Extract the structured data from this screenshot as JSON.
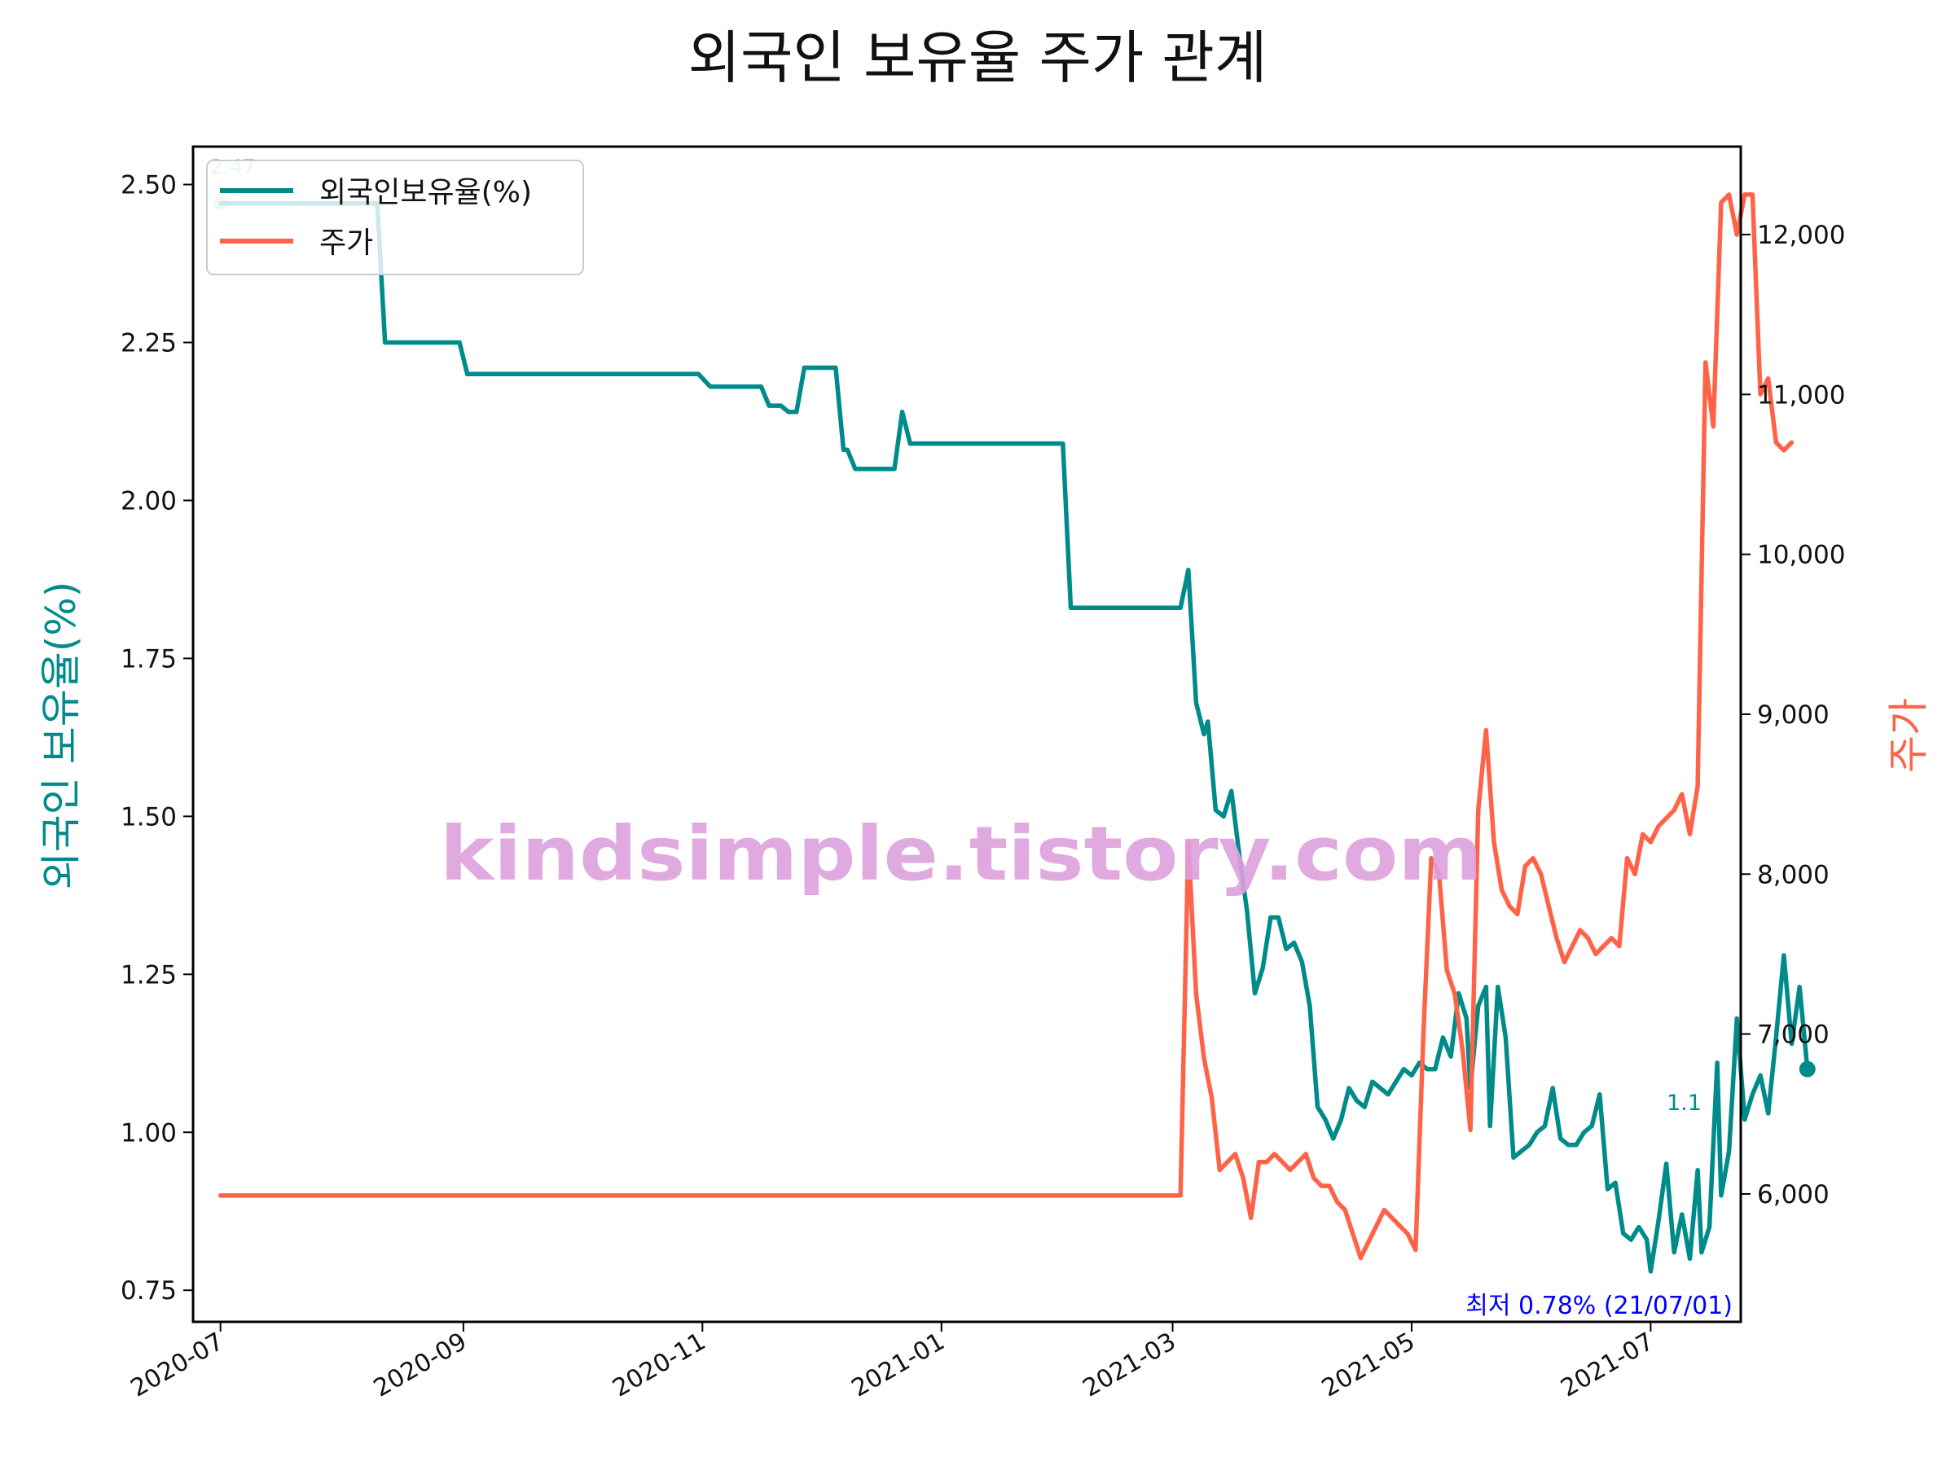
{
  "chart_data": {
    "type": "line",
    "title": "외국인 보유율 주가 관계",
    "ylabel_left": "외국인 보유율(%)",
    "ylabel_right": "주가",
    "x_range": [
      "2020-06-24",
      "2021-07-24"
    ],
    "ylim_left": [
      0.7,
      2.56
    ],
    "ylim_right": [
      5200,
      12550
    ],
    "x_ticks": [
      "2020-07",
      "2020-09",
      "2020-11",
      "2021-01",
      "2021-03",
      "2021-05",
      "2021-07"
    ],
    "x_tick_dates": [
      "2020-07-01",
      "2020-09-01",
      "2020-11-01",
      "2021-01-01",
      "2021-03-01",
      "2021-05-01",
      "2021-07-01"
    ],
    "y_ticks_left": [
      0.75,
      1.0,
      1.25,
      1.5,
      1.75,
      2.0,
      2.25,
      2.5
    ],
    "y_tick_labels_left": [
      "0.75",
      "1.00",
      "1.25",
      "1.50",
      "1.75",
      "2.00",
      "2.25",
      "2.50"
    ],
    "y_ticks_right": [
      6000,
      7000,
      8000,
      9000,
      10000,
      11000,
      12000
    ],
    "y_tick_labels_right": [
      "6,000",
      "7,000",
      "8,000",
      "9,000",
      "10,000",
      "11,000",
      "12,000"
    ],
    "legend_position": "top-left",
    "colors": {
      "foreign": "#008b8b",
      "price": "#ff6347",
      "min_note": "#0000ff",
      "watermark": "#dda0dd"
    },
    "series": [
      {
        "name": "외국인보유율(%)",
        "axis": "left",
        "points": [
          [
            "2020-07-01",
            2.47
          ],
          [
            "2020-08-10",
            2.47
          ],
          [
            "2020-08-12",
            2.25
          ],
          [
            "2020-08-31",
            2.25
          ],
          [
            "2020-09-02",
            2.2
          ],
          [
            "2020-10-31",
            2.2
          ],
          [
            "2020-11-03",
            2.18
          ],
          [
            "2020-11-16",
            2.18
          ],
          [
            "2020-11-18",
            2.15
          ],
          [
            "2020-11-21",
            2.15
          ],
          [
            "2020-11-23",
            2.14
          ],
          [
            "2020-11-25",
            2.14
          ],
          [
            "2020-11-27",
            2.21
          ],
          [
            "2020-12-05",
            2.21
          ],
          [
            "2020-12-07",
            2.08
          ],
          [
            "2020-12-08",
            2.08
          ],
          [
            "2020-12-10",
            2.05
          ],
          [
            "2020-12-20",
            2.05
          ],
          [
            "2020-12-22",
            2.14
          ],
          [
            "2020-12-24",
            2.09
          ],
          [
            "2021-02-01",
            2.09
          ],
          [
            "2021-02-03",
            1.83
          ],
          [
            "2021-03-03",
            1.83
          ],
          [
            "2021-03-05",
            1.89
          ],
          [
            "2021-03-07",
            1.68
          ],
          [
            "2021-03-09",
            1.63
          ],
          [
            "2021-03-10",
            1.65
          ],
          [
            "2021-03-12",
            1.51
          ],
          [
            "2021-03-14",
            1.5
          ],
          [
            "2021-03-16",
            1.54
          ],
          [
            "2021-03-18",
            1.44
          ],
          [
            "2021-03-20",
            1.35
          ],
          [
            "2021-03-22",
            1.22
          ],
          [
            "2021-03-24",
            1.26
          ],
          [
            "2021-03-26",
            1.34
          ],
          [
            "2021-03-28",
            1.34
          ],
          [
            "2021-03-30",
            1.29
          ],
          [
            "2021-04-01",
            1.3
          ],
          [
            "2021-04-03",
            1.27
          ],
          [
            "2021-04-05",
            1.2
          ],
          [
            "2021-04-07",
            1.04
          ],
          [
            "2021-04-09",
            1.02
          ],
          [
            "2021-04-11",
            0.99
          ],
          [
            "2021-04-13",
            1.02
          ],
          [
            "2021-04-15",
            1.07
          ],
          [
            "2021-04-17",
            1.05
          ],
          [
            "2021-04-19",
            1.04
          ],
          [
            "2021-04-21",
            1.08
          ],
          [
            "2021-04-23",
            1.07
          ],
          [
            "2021-04-25",
            1.06
          ],
          [
            "2021-04-27",
            1.08
          ],
          [
            "2021-04-29",
            1.1
          ],
          [
            "2021-05-01",
            1.09
          ],
          [
            "2021-05-03",
            1.11
          ],
          [
            "2021-05-05",
            1.1
          ],
          [
            "2021-05-07",
            1.1
          ],
          [
            "2021-05-09",
            1.15
          ],
          [
            "2021-05-11",
            1.12
          ],
          [
            "2021-05-13",
            1.22
          ],
          [
            "2021-05-15",
            1.18
          ],
          [
            "2021-05-16",
            1.07
          ],
          [
            "2021-05-18",
            1.2
          ],
          [
            "2021-05-20",
            1.23
          ],
          [
            "2021-05-21",
            1.01
          ],
          [
            "2021-05-23",
            1.23
          ],
          [
            "2021-05-25",
            1.15
          ],
          [
            "2021-05-27",
            0.96
          ],
          [
            "2021-05-29",
            0.97
          ],
          [
            "2021-05-31",
            0.98
          ],
          [
            "2021-06-02",
            1.0
          ],
          [
            "2021-06-04",
            1.01
          ],
          [
            "2021-06-06",
            1.07
          ],
          [
            "2021-06-08",
            0.99
          ],
          [
            "2021-06-10",
            0.98
          ],
          [
            "2021-06-12",
            0.98
          ],
          [
            "2021-06-14",
            1.0
          ],
          [
            "2021-06-16",
            1.01
          ],
          [
            "2021-06-18",
            1.06
          ],
          [
            "2021-06-20",
            0.91
          ],
          [
            "2021-06-22",
            0.92
          ],
          [
            "2021-06-24",
            0.84
          ],
          [
            "2021-06-26",
            0.83
          ],
          [
            "2021-06-28",
            0.85
          ],
          [
            "2021-06-30",
            0.83
          ],
          [
            "2021-07-01",
            0.78
          ],
          [
            "2021-07-03",
            0.86
          ],
          [
            "2021-07-05",
            0.95
          ],
          [
            "2021-07-07",
            0.81
          ],
          [
            "2021-07-09",
            0.87
          ],
          [
            "2021-07-11",
            0.8
          ],
          [
            "2021-07-13",
            0.94
          ],
          [
            "2021-07-14",
            0.81
          ],
          [
            "2021-07-16",
            0.85
          ],
          [
            "2021-07-18",
            1.11
          ],
          [
            "2021-07-19",
            0.9
          ],
          [
            "2021-07-21",
            0.97
          ],
          [
            "2021-07-23",
            1.18
          ],
          [
            "2021-07-25",
            1.02
          ],
          [
            "2021-07-27",
            1.06
          ],
          [
            "2021-07-29",
            1.09
          ],
          [
            "2021-07-31",
            1.03
          ],
          [
            "2021-08-02",
            1.15
          ],
          [
            "2021-08-04",
            1.28
          ],
          [
            "2021-08-06",
            1.14
          ],
          [
            "2021-08-08",
            1.23
          ],
          [
            "2021-08-10",
            1.1
          ]
        ]
      },
      {
        "name": "주가",
        "axis": "right",
        "points": [
          [
            "2020-07-01",
            5990
          ],
          [
            "2021-03-03",
            5990
          ],
          [
            "2021-03-05",
            8200
          ],
          [
            "2021-03-07",
            7250
          ],
          [
            "2021-03-09",
            6850
          ],
          [
            "2021-03-11",
            6600
          ],
          [
            "2021-03-13",
            6150
          ],
          [
            "2021-03-15",
            6200
          ],
          [
            "2021-03-17",
            6250
          ],
          [
            "2021-03-19",
            6100
          ],
          [
            "2021-03-21",
            5850
          ],
          [
            "2021-03-23",
            6200
          ],
          [
            "2021-03-25",
            6200
          ],
          [
            "2021-03-27",
            6250
          ],
          [
            "2021-03-29",
            6200
          ],
          [
            "2021-03-31",
            6150
          ],
          [
            "2021-04-02",
            6200
          ],
          [
            "2021-04-04",
            6250
          ],
          [
            "2021-04-06",
            6100
          ],
          [
            "2021-04-08",
            6050
          ],
          [
            "2021-04-10",
            6050
          ],
          [
            "2021-04-12",
            5950
          ],
          [
            "2021-04-14",
            5900
          ],
          [
            "2021-04-16",
            5750
          ],
          [
            "2021-04-18",
            5600
          ],
          [
            "2021-04-20",
            5700
          ],
          [
            "2021-04-22",
            5800
          ],
          [
            "2021-04-24",
            5900
          ],
          [
            "2021-04-26",
            5850
          ],
          [
            "2021-04-28",
            5800
          ],
          [
            "2021-04-30",
            5750
          ],
          [
            "2021-05-02",
            5650
          ],
          [
            "2021-05-04",
            7000
          ],
          [
            "2021-05-06",
            8100
          ],
          [
            "2021-05-08",
            8000
          ],
          [
            "2021-05-10",
            7400
          ],
          [
            "2021-05-12",
            7250
          ],
          [
            "2021-05-14",
            6900
          ],
          [
            "2021-05-16",
            6400
          ],
          [
            "2021-05-18",
            8400
          ],
          [
            "2021-05-20",
            8900
          ],
          [
            "2021-05-22",
            8200
          ],
          [
            "2021-05-24",
            7900
          ],
          [
            "2021-05-26",
            7800
          ],
          [
            "2021-05-28",
            7750
          ],
          [
            "2021-05-30",
            8050
          ],
          [
            "2021-06-01",
            8100
          ],
          [
            "2021-06-03",
            8000
          ],
          [
            "2021-06-05",
            7800
          ],
          [
            "2021-06-07",
            7600
          ],
          [
            "2021-06-09",
            7450
          ],
          [
            "2021-06-11",
            7550
          ],
          [
            "2021-06-13",
            7650
          ],
          [
            "2021-06-15",
            7600
          ],
          [
            "2021-06-17",
            7500
          ],
          [
            "2021-06-19",
            7550
          ],
          [
            "2021-06-21",
            7600
          ],
          [
            "2021-06-23",
            7550
          ],
          [
            "2021-06-25",
            8100
          ],
          [
            "2021-06-27",
            8000
          ],
          [
            "2021-06-29",
            8250
          ],
          [
            "2021-07-01",
            8200
          ],
          [
            "2021-07-03",
            8300
          ],
          [
            "2021-07-05",
            8350
          ],
          [
            "2021-07-07",
            8400
          ],
          [
            "2021-07-09",
            8500
          ],
          [
            "2021-07-11",
            8250
          ],
          [
            "2021-07-13",
            8550
          ],
          [
            "2021-07-15",
            11200
          ],
          [
            "2021-07-17",
            10800
          ],
          [
            "2021-07-19",
            12200
          ],
          [
            "2021-07-21",
            12250
          ],
          [
            "2021-07-23",
            12000
          ],
          [
            "2021-07-25",
            12250
          ],
          [
            "2021-07-27",
            12250
          ],
          [
            "2021-07-29",
            11000
          ],
          [
            "2021-07-31",
            11100
          ],
          [
            "2021-08-02",
            10700
          ],
          [
            "2021-08-04",
            10650
          ],
          [
            "2021-08-06",
            10700
          ]
        ]
      }
    ],
    "annotations": {
      "start_label": "2.47",
      "end_label": "1.1",
      "min_note": "최저 0.78% (21/07/01)"
    },
    "watermark": "kindsimple.tistory.com"
  }
}
